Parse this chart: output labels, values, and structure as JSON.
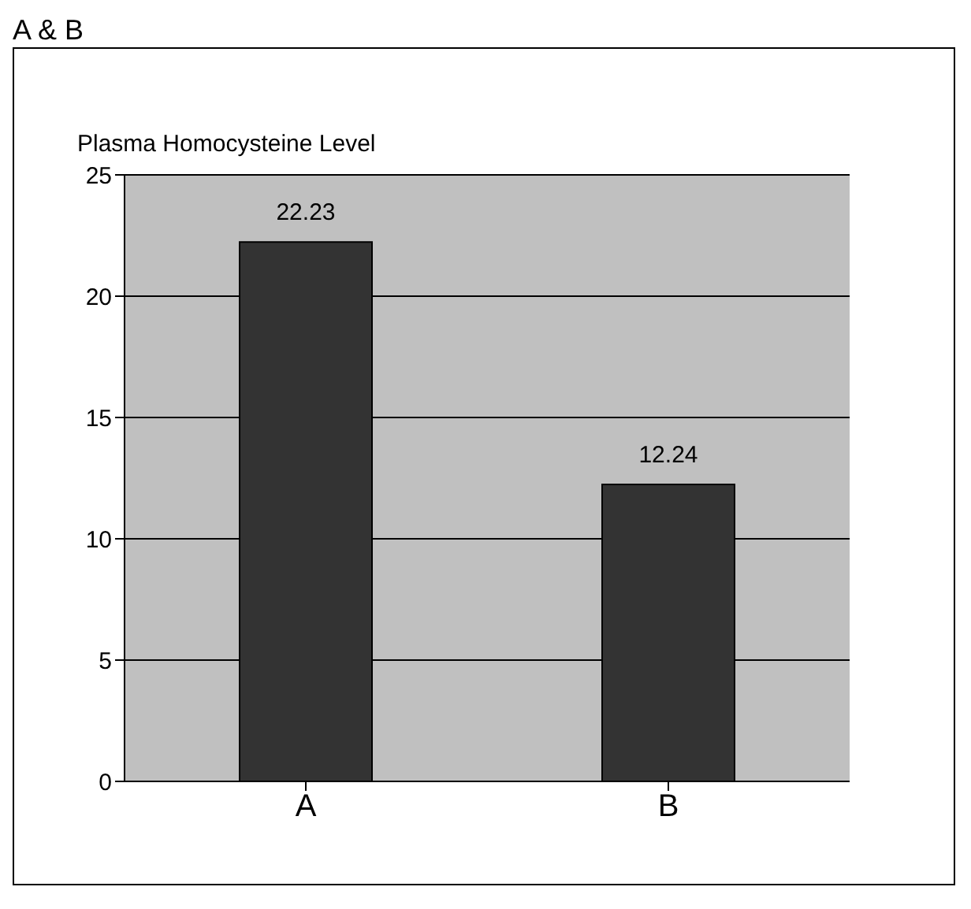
{
  "chart_data": {
    "type": "bar",
    "title": "A & B",
    "ylabel": "Plasma Homocysteine Level",
    "categories": [
      "A",
      "B"
    ],
    "values": [
      22.23,
      12.24
    ],
    "color": "#333333",
    "ylim": [
      0,
      25
    ],
    "yticks": [
      0,
      5,
      10,
      15,
      20,
      25
    ],
    "grid": "y",
    "data_labels": true
  }
}
